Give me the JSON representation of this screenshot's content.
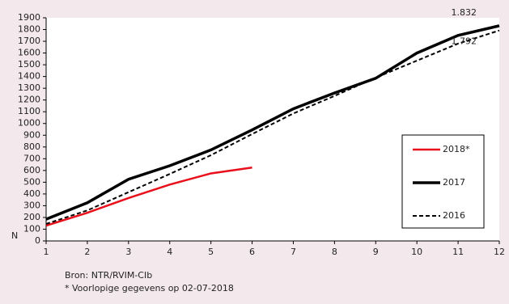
{
  "chart_data": {
    "type": "line",
    "x": [
      1,
      2,
      3,
      4,
      5,
      6,
      7,
      8,
      9,
      10,
      11,
      12
    ],
    "xlim": [
      1,
      12
    ],
    "xticks": [
      1,
      2,
      3,
      4,
      5,
      6,
      7,
      8,
      9,
      10,
      11,
      12
    ],
    "ylim": [
      0,
      1900
    ],
    "yticks": [
      0,
      100,
      200,
      300,
      400,
      500,
      600,
      700,
      800,
      900,
      1000,
      1100,
      1200,
      1300,
      1400,
      1500,
      1600,
      1700,
      1800,
      1900
    ],
    "ylabel": "N",
    "legend": "right",
    "series": [
      {
        "name": "2018*",
        "color": "#e8101a",
        "style": "solid",
        "width": 2.5,
        "values": [
          130,
          240,
          365,
          480,
          575,
          625,
          null,
          null,
          null,
          null,
          null,
          null
        ]
      },
      {
        "name": "2017",
        "color": "#000000",
        "style": "solid",
        "width": 3.5,
        "values": [
          185,
          325,
          525,
          640,
          775,
          945,
          1125,
          1260,
          1385,
          1600,
          1750,
          1832
        ],
        "value_labels": [
          null,
          null,
          null,
          null,
          null,
          null,
          null,
          null,
          null,
          null,
          null,
          "1.832"
        ]
      },
      {
        "name": "2016",
        "color": "#000000",
        "style": "dashed",
        "width": 2,
        "values": [
          145,
          260,
          415,
          570,
          730,
          910,
          1085,
          1235,
          1390,
          1535,
          1680,
          1792
        ],
        "value_labels": [
          null,
          null,
          null,
          null,
          null,
          null,
          null,
          null,
          null,
          null,
          null,
          "1.792"
        ]
      }
    ],
    "notes": [
      "Bron: NTR/RVIM-CIb",
      "* Voorlopige gegevens op 02-07-2018"
    ]
  }
}
